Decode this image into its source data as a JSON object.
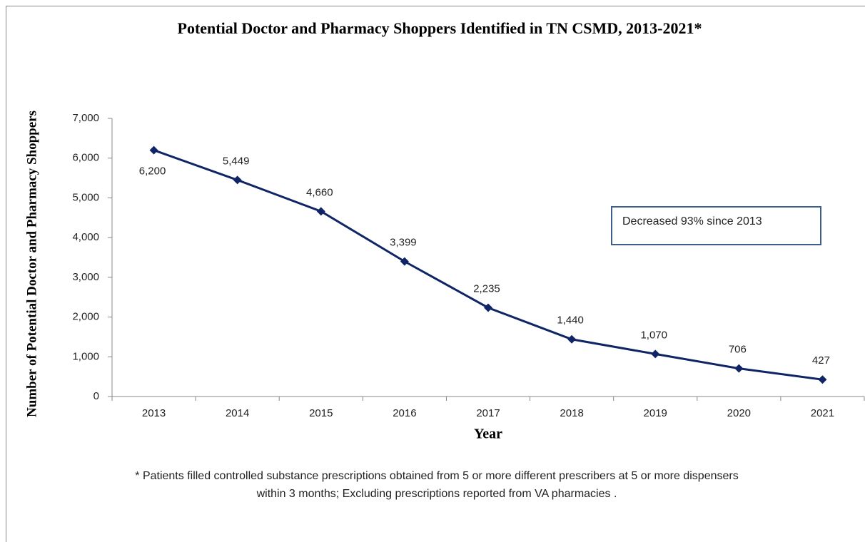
{
  "chart_data": {
    "type": "line",
    "title": "Potential Doctor and Pharmacy Shoppers Identified in TN CSMD, 2013-2021*",
    "x_label": "Year",
    "y_label": "Number of Potential Doctor and Pharmacy Shoppers",
    "categories": [
      "2013",
      "2014",
      "2015",
      "2016",
      "2017",
      "2018",
      "2019",
      "2020",
      "2021"
    ],
    "values": [
      6200,
      5449,
      4660,
      3399,
      2235,
      1440,
      1070,
      706,
      427
    ],
    "value_labels": [
      "6,200",
      "5,449",
      "4,660",
      "3,399",
      "2,235",
      "1,440",
      "1,070",
      "706",
      "427"
    ],
    "color": "#0f2566",
    "ylim": [
      0,
      7000
    ],
    "yticks": [
      0,
      {
        "value": 1000,
        "label": "1,000"
      },
      {
        "value": 2000,
        "label": "2,000"
      },
      {
        "value": 3000,
        "label": "3,000"
      },
      {
        "value": 4000,
        "label": "4,000"
      },
      {
        "value": 5000,
        "label": "5,000"
      },
      {
        "value": 6000,
        "label": "6,000"
      },
      {
        "value": 7000,
        "label": "7,000"
      }
    ],
    "grid": false,
    "annotation": "Decreased 93% since 2013",
    "footnote": [
      "* Patients filled  controlled substance prescriptions obtained from 5 or more different prescribers at 5 or more dispensers",
      "within 3 months;  Excluding prescriptions reported from VA pharmacies ."
    ]
  }
}
